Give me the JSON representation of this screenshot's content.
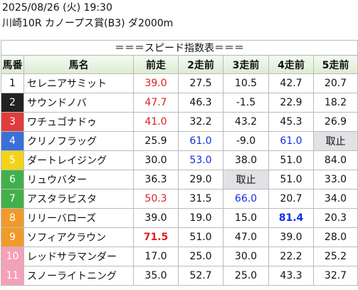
{
  "header": {
    "datetime": "2025/08/26 (火) 19:30",
    "race": "川崎10R カノープス賞(B3) ダ2000m"
  },
  "table": {
    "title": "＝＝＝スピード指数表＝＝＝",
    "columns": [
      "馬番",
      "馬名",
      "前走",
      "2走前",
      "3走前",
      "4走前",
      "5走前"
    ],
    "rows": [
      [
        "1",
        "セレニアサミット",
        "39.0",
        "27.5",
        "10.5",
        "42.7",
        "20.7"
      ],
      [
        "2",
        "サウンドノバ",
        "47.7",
        "46.3",
        "-1.5",
        "22.9",
        "18.2"
      ],
      [
        "3",
        "ワチュゴナドゥ",
        "41.0",
        "32.2",
        "43.2",
        "45.3",
        "26.9"
      ],
      [
        "4",
        "クリノフラッグ",
        "25.9",
        "61.0",
        "-9.0",
        "61.0",
        "取止"
      ],
      [
        "5",
        "ダートレイジング",
        "30.0",
        "53.0",
        "38.0",
        "51.0",
        "84.0"
      ],
      [
        "6",
        "リュウバター",
        "36.3",
        "29.0",
        "取止",
        "51.0",
        "33.0"
      ],
      [
        "7",
        "アスタラビスタ",
        "50.3",
        "31.5",
        "66.0",
        "20.7",
        "34.0"
      ],
      [
        "8",
        "リリーバローズ",
        "39.0",
        "19.0",
        "15.0",
        "81.4",
        "20.3"
      ],
      [
        "9",
        "ソフィアクラウン",
        "71.5",
        "51.0",
        "47.0",
        "39.0",
        "28.0"
      ],
      [
        "10",
        "レッドサラマンダー",
        "17.0",
        "25.0",
        "30.0",
        "22.2",
        "25.2"
      ],
      [
        "11",
        "スノーライトニング",
        "35.0",
        "52.7",
        "25.0",
        "43.3",
        "32.7"
      ]
    ]
  }
}
